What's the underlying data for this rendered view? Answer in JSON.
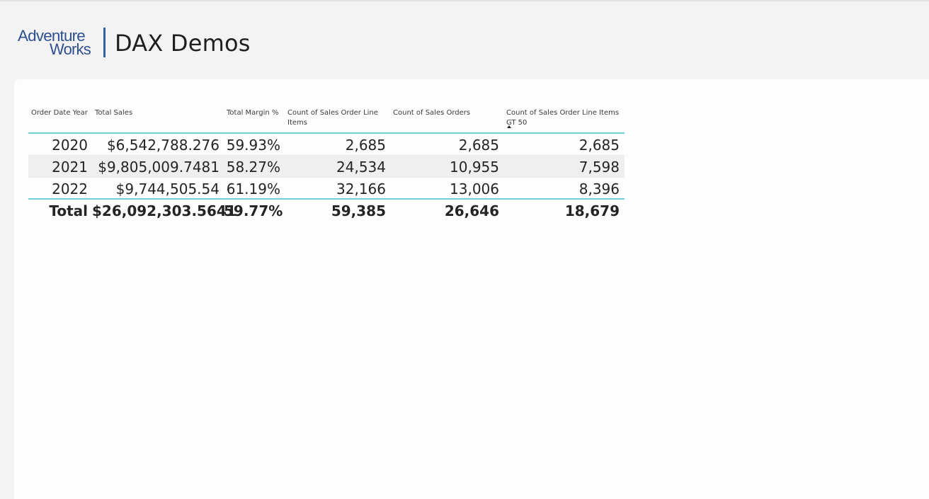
{
  "header": {
    "logo_line1": "Adventure",
    "logo_line2": "Works",
    "title": "DAX Demos"
  },
  "matrix": {
    "columns": [
      "Order Date Year",
      "Total Sales",
      "Total Margin %",
      "Count of Sales Order Line Items",
      "Count of Sales Orders",
      "Count of Sales Order Line Items GT 50"
    ],
    "sorted_column": "Count of Sales Order Line Items GT 50",
    "sort_direction": "ascending",
    "rows": [
      [
        "2020",
        "$6,542,788.276",
        "59.93%",
        "2,685",
        "2,685",
        "2,685"
      ],
      [
        "2021",
        "$9,805,009.7481",
        "58.27%",
        "24,534",
        "10,955",
        "7,598"
      ],
      [
        "2022",
        "$9,744,505.54",
        "61.19%",
        "32,166",
        "13,006",
        "8,396"
      ]
    ],
    "total": [
      "Total",
      "$26,092,303.5641",
      "59.77%",
      "59,385",
      "26,646",
      "18,679"
    ]
  },
  "colors": {
    "accent": "#6fd1d6",
    "logo": "#2f4f8f",
    "background": "#f3f3f3",
    "canvas": "#fdfdfd"
  }
}
